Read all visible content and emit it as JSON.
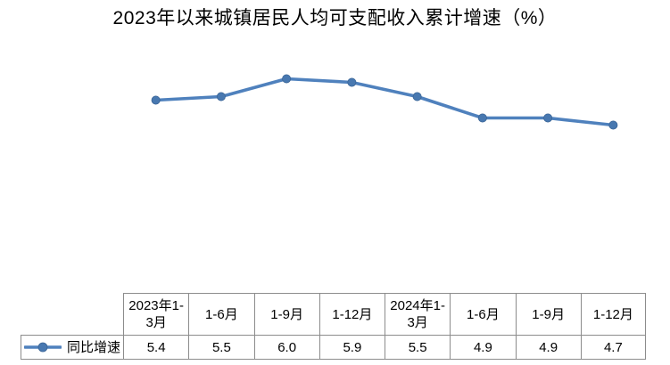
{
  "chart": {
    "title": "2023年以来城镇居民人均可支配收入累计增速（%）"
  },
  "chart_data": {
    "type": "line",
    "title": "2023年以来城镇居民人均可支配收入累计增速（%）",
    "categories": [
      "2023年1-3月",
      "1-6月",
      "1-9月",
      "1-12月",
      "2024年1-3月",
      "1-6月",
      "1-9月",
      "1-12月"
    ],
    "series": [
      {
        "name": "同比增速",
        "values": [
          5.4,
          5.5,
          6.0,
          5.9,
          5.5,
          4.9,
          4.9,
          4.7
        ]
      }
    ],
    "xlabel": "",
    "ylabel": "",
    "grid": false,
    "legend_position": "bottom-table-left",
    "line_color": "#4F81BD",
    "marker": "circle"
  },
  "table": {
    "legend_label": "同比增速",
    "headers": [
      "2023年1-3月",
      "1-6月",
      "1-9月",
      "1-12月",
      "2024年1-3月",
      "1-6月",
      "1-9月",
      "1-12月"
    ],
    "values": [
      "5.4",
      "5.5",
      "6.0",
      "5.9",
      "5.5",
      "4.9",
      "4.9",
      "4.7"
    ],
    "border_color": "#8c8c8c"
  }
}
